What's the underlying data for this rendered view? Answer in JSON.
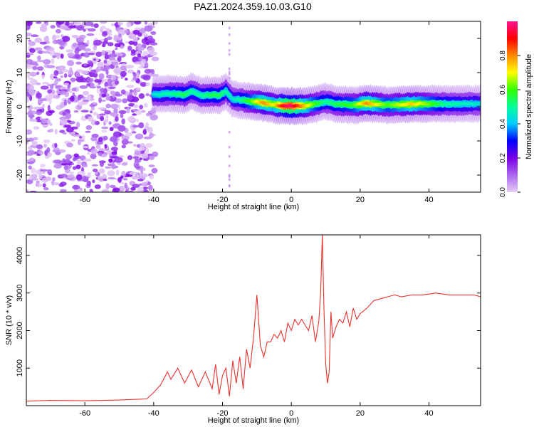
{
  "figure": {
    "title": "PAZ1.2024.359.10.03.G10"
  },
  "chart_data": [
    {
      "type": "heatmap",
      "title": "PAZ1.2024.359.10.03.G10",
      "xlabel": "Height of straight line (km)",
      "ylabel": "Frequency (Hz)",
      "xlim": [
        -77,
        55
      ],
      "ylim": [
        -25,
        25
      ],
      "xticks": [
        -60,
        -40,
        -20,
        0,
        20,
        40
      ],
      "yticks": [
        -20,
        -10,
        0,
        10,
        20
      ],
      "xtick_labels": [
        "-60",
        "-40",
        "-20",
        "0",
        "20",
        "40"
      ],
      "ytick_labels": [
        "-20",
        "-10",
        "0",
        "10",
        "20"
      ],
      "noise_region_x": [
        -77,
        -40
      ],
      "ridge": {
        "x": [
          -40,
          -35,
          -31,
          -29,
          -26,
          -23,
          -21,
          -19,
          -17,
          -15,
          -12,
          -8,
          -5,
          -2,
          0,
          4,
          7,
          10,
          13,
          18,
          22,
          28,
          35,
          45,
          55
        ],
        "y": [
          3.5,
          3.8,
          3.5,
          4.5,
          3.2,
          3.5,
          3.2,
          4.5,
          2.2,
          2.0,
          1.6,
          1.2,
          0.5,
          0.3,
          0.2,
          0.3,
          0.8,
          1.5,
          0.8,
          0.5,
          1.0,
          0.5,
          0.8,
          0.8,
          0.9
        ],
        "amplitude": [
          0.45,
          0.5,
          0.55,
          0.5,
          0.5,
          0.55,
          0.55,
          0.5,
          0.45,
          0.5,
          0.6,
          0.8,
          0.7,
          0.95,
          0.98,
          0.75,
          0.6,
          0.5,
          0.55,
          0.6,
          0.8,
          0.6,
          0.75,
          0.5,
          0.45
        ]
      },
      "colorbar": {
        "label": "Normalized spectral amplitude",
        "ticks": [
          0.0,
          0.2,
          0.4,
          0.6,
          0.8
        ],
        "tick_labels": [
          "0.0",
          "0.2",
          "0.4",
          "0.6",
          "0.8"
        ],
        "range": [
          0,
          1
        ],
        "colors": [
          "#e6ccf5",
          "#aa66ee",
          "#7a00e6",
          "#0000ff",
          "#00ccff",
          "#00ff99",
          "#33ff00",
          "#ffff00",
          "#ff8800",
          "#ff0000",
          "#ff1493"
        ]
      }
    },
    {
      "type": "line",
      "title": "",
      "xlabel": "Height of straight line (km)",
      "ylabel": "SNR (10 * v/v)",
      "xlim": [
        -77,
        55
      ],
      "ylim": [
        0,
        4550
      ],
      "xticks": [
        -60,
        -40,
        -20,
        0,
        20,
        40
      ],
      "yticks": [
        1000,
        2000,
        3000,
        4000
      ],
      "xtick_labels": [
        "-60",
        "-40",
        "-20",
        "0",
        "20",
        "40"
      ],
      "ytick_labels": [
        "1000",
        "2000",
        "3000",
        "4000"
      ],
      "color": "#e8322e",
      "series": [
        {
          "x": [
            -77,
            -70,
            -60,
            -50,
            -42,
            -40,
            -38,
            -36,
            -35,
            -33,
            -31,
            -29,
            -27,
            -25,
            -23,
            -22,
            -21,
            -20,
            -19,
            -18,
            -17,
            -16,
            -15,
            -14,
            -13,
            -12,
            -11,
            -10,
            -9,
            -8,
            -7,
            -6,
            -5,
            -4,
            -3,
            -2,
            -1,
            0,
            1,
            2,
            3,
            4,
            5,
            6,
            7,
            8,
            8.5,
            9,
            9.5,
            10,
            10.5,
            11,
            11.5,
            12,
            13,
            14,
            15,
            16,
            17,
            18,
            19,
            20,
            22,
            24,
            26,
            28,
            30,
            32,
            35,
            38,
            42,
            46,
            50,
            53,
            55
          ],
          "y": [
            120,
            140,
            130,
            150,
            180,
            350,
            550,
            900,
            700,
            1000,
            600,
            950,
            500,
            900,
            450,
            1100,
            300,
            800,
            1000,
            250,
            1200,
            600,
            1300,
            450,
            1500,
            1000,
            1800,
            2950,
            1600,
            1300,
            1700,
            1700,
            1900,
            1800,
            2000,
            1700,
            2200,
            2000,
            2300,
            2150,
            2300,
            2150,
            2000,
            2400,
            1700,
            2250,
            3000,
            4550,
            2500,
            1100,
            600,
            900,
            2500,
            1800,
            2100,
            2300,
            2200,
            2500,
            2100,
            2600,
            2300,
            2450,
            2600,
            2800,
            2850,
            2900,
            2950,
            2900,
            2950,
            2950,
            3000,
            2950,
            2950,
            2950,
            2900
          ]
        }
      ]
    }
  ]
}
